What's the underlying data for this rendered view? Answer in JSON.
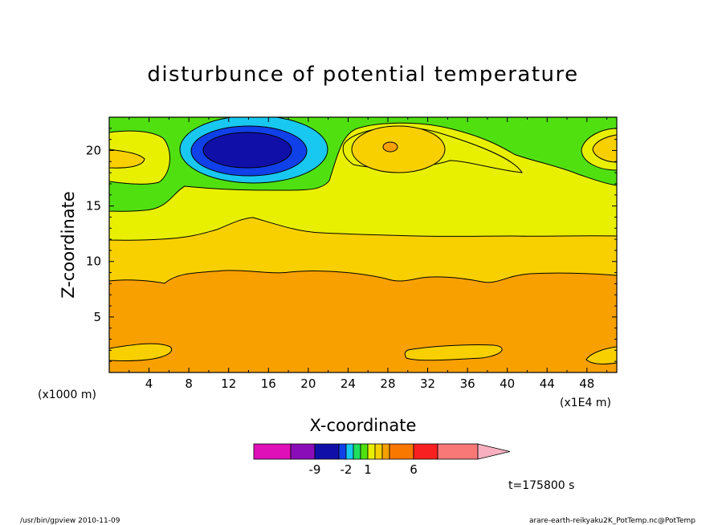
{
  "chart_data": {
    "type": "contour",
    "title": "disturbunce of potential temperature",
    "xlabel": "X-coordinate",
    "ylabel": "Z-coordinate",
    "x_unit_note": "(x1000 m)",
    "x_scale_note": "(x1E4 m)",
    "xlim": [
      0,
      51
    ],
    "ylim": [
      0,
      23
    ],
    "x_ticks": [
      "4",
      "8",
      "12",
      "16",
      "20",
      "24",
      "28",
      "32",
      "36",
      "40",
      "44",
      "48"
    ],
    "y_ticks": [
      "5",
      "10",
      "15",
      "20"
    ],
    "colorbar": {
      "colors": [
        "#e010b8",
        "#8a0cb8",
        "#1010a8",
        "#1040e8",
        "#18c8f0",
        "#20e060",
        "#50e010",
        "#e8f000",
        "#f8d000",
        "#f8a000",
        "#f87800",
        "#f82020",
        "#f87878",
        "#f8b0c0"
      ],
      "labels": [
        "-9",
        "-2",
        "1",
        "6"
      ]
    },
    "time_label": "t=175800 s"
  },
  "footer": {
    "left": "/usr/bin/gpview   2010-11-09",
    "right": "arare-earth-reikyaku2K_PotTemp.nc@PotTemp"
  }
}
